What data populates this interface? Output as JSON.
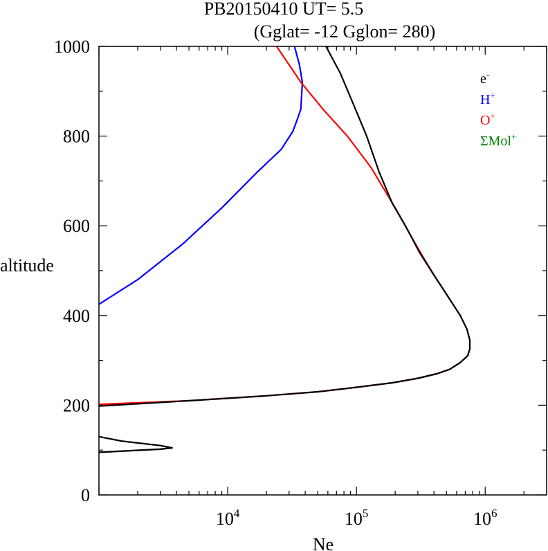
{
  "chart_data": {
    "type": "line",
    "title": "PB20150410   UT=  5.5",
    "subtitle": "(Gglat= -12   Gglon=  280)",
    "xlabel": "Ne",
    "ylabel": "altitude",
    "x_scale": "log",
    "xlim": [
      1000,
      3000000
    ],
    "ylim": [
      0,
      1000
    ],
    "x_ticks": [
      {
        "value": 10000,
        "base": "10",
        "exp": "4"
      },
      {
        "value": 100000,
        "base": "10",
        "exp": "5"
      },
      {
        "value": 1000000,
        "base": "10",
        "exp": "6"
      }
    ],
    "y_ticks": [
      0,
      200,
      400,
      600,
      800,
      1000
    ],
    "legend_position": "top-right",
    "series": [
      {
        "name": "e-",
        "label_base": "e",
        "label_sup": "-",
        "color": "#000000",
        "segments": [
          [
            [
              1000,
              95
            ],
            [
              3000,
              102
            ],
            [
              3700,
              105
            ],
            [
              3000,
              110
            ],
            [
              1500,
              120
            ],
            [
              1000,
              130
            ]
          ],
          [
            [
              1000,
              198
            ],
            [
              5000,
              210
            ],
            [
              18000,
              220
            ],
            [
              50000,
              230
            ],
            [
              100000,
              240
            ],
            [
              190000,
              250
            ],
            [
              300000,
              260
            ],
            [
              420000,
              270
            ],
            [
              530000,
              280
            ],
            [
              640000,
              295
            ],
            [
              730000,
              310
            ],
            [
              760000,
              325
            ],
            [
              760000,
              345
            ],
            [
              720000,
              370
            ],
            [
              640000,
              400
            ],
            [
              520000,
              440
            ],
            [
              400000,
              490
            ],
            [
              310000,
              540
            ],
            [
              240000,
              600
            ],
            [
              190000,
              650
            ],
            [
              150000,
              720
            ],
            [
              120000,
              800
            ],
            [
              95000,
              870
            ],
            [
              75000,
              940
            ],
            [
              58000,
              1000
            ]
          ]
        ]
      },
      {
        "name": "H+",
        "label_base": "H",
        "label_sup": "+",
        "color": "#0000ff",
        "segments": [
          [
            [
              1000,
              425
            ],
            [
              2000,
              480
            ],
            [
              4500,
              560
            ],
            [
              9000,
              640
            ],
            [
              17000,
              720
            ],
            [
              26000,
              770
            ],
            [
              32000,
              810
            ],
            [
              35000,
              840
            ],
            [
              37000,
              860
            ],
            [
              38000,
              920
            ],
            [
              36000,
              960
            ],
            [
              33000,
              1000
            ]
          ]
        ]
      },
      {
        "name": "O+",
        "label_base": "O",
        "label_sup": "+",
        "color": "#ff0000",
        "segments": [
          [
            [
              1000,
              202
            ],
            [
              5000,
              210
            ],
            [
              18000,
              220
            ],
            [
              50000,
              230
            ],
            [
              100000,
              240
            ],
            [
              190000,
              250
            ],
            [
              300000,
              260
            ],
            [
              420000,
              270
            ],
            [
              530000,
              280
            ],
            [
              640000,
              295
            ],
            [
              730000,
              310
            ],
            [
              760000,
              325
            ],
            [
              760000,
              345
            ],
            [
              720000,
              370
            ],
            [
              640000,
              400
            ],
            [
              520000,
              440
            ],
            [
              400000,
              490
            ],
            [
              300000,
              550
            ],
            [
              200000,
              640
            ],
            [
              130000,
              730
            ],
            [
              85000,
              800
            ],
            [
              55000,
              860
            ],
            [
              37000,
              920
            ],
            [
              24000,
              1000
            ]
          ]
        ]
      },
      {
        "name": "ΣMol+",
        "label_base": "ΣMol",
        "label_sup": "+",
        "color": "#008000",
        "segments": [
          [
            [
              1000,
              95
            ],
            [
              3000,
              102
            ],
            [
              3700,
              105
            ],
            [
              3000,
              110
            ],
            [
              1500,
              120
            ],
            [
              1000,
              130
            ]
          ],
          [
            [
              1000,
              200
            ],
            [
              1500,
              203
            ]
          ]
        ]
      }
    ]
  }
}
